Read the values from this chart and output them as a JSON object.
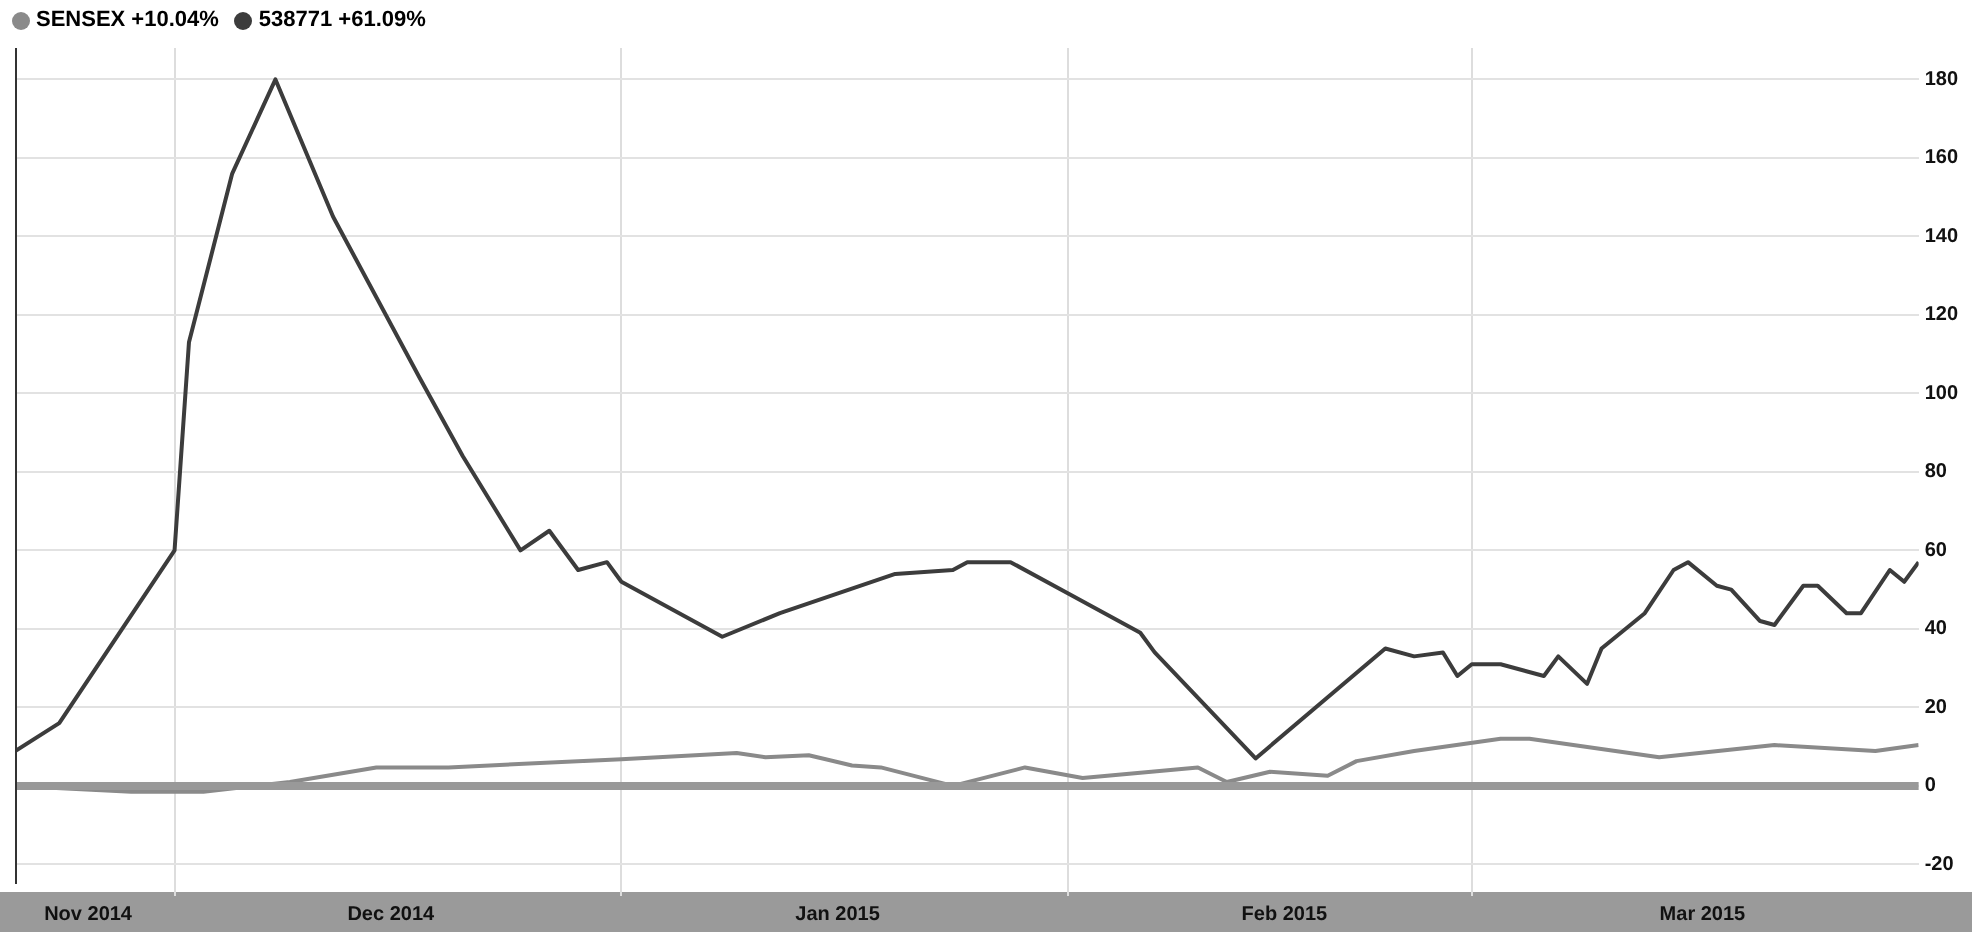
{
  "chart_data": {
    "type": "line",
    "legend": "top left",
    "grid": true,
    "marker": "none",
    "line_style": "solid",
    "xlim": [
      "2014-11-20",
      "2015-04-01"
    ],
    "xticks": [
      {
        "value": "2014-11-25",
        "label": "Nov 2014"
      },
      {
        "value": "2014-12-01",
        "label": null
      },
      {
        "value": "2014-12-16",
        "label": "Dec 2014"
      },
      {
        "value": "2015-01-01",
        "label": null
      },
      {
        "value": "2015-01-16",
        "label": "Jan 2015"
      },
      {
        "value": "2015-02-01",
        "label": null
      },
      {
        "value": "2015-02-16",
        "label": "Feb 2015"
      },
      {
        "value": "2015-03-01",
        "label": null
      },
      {
        "value": "2015-03-17",
        "label": "Mar 2015"
      }
    ],
    "ylim": [
      -25,
      188
    ],
    "yticks": [
      -20,
      0,
      20,
      40,
      60,
      80,
      100,
      120,
      140,
      160,
      180
    ],
    "ref_lines": [
      {
        "axis": "y",
        "value": 0,
        "color": "#999999"
      }
    ],
    "series": [
      {
        "name": "SENSEX +10.04%",
        "color": "#8a8a8a",
        "x": [
          "2014-11-20",
          "2014-11-28",
          "2014-12-03",
          "2014-12-09",
          "2014-12-15",
          "2014-12-20",
          "2015-01-01",
          "2015-01-09",
          "2015-01-11",
          "2015-01-14",
          "2015-01-17",
          "2015-01-19",
          "2015-01-24",
          "2015-01-29",
          "2015-02-02",
          "2015-02-10",
          "2015-02-12",
          "2015-02-15",
          "2015-02-19",
          "2015-02-21",
          "2015-02-25",
          "2015-03-03",
          "2015-03-05",
          "2015-03-14",
          "2015-03-22",
          "2015-03-29",
          "2015-04-01"
        ],
        "values": [
          0,
          -1.5,
          -1.5,
          1,
          4.7,
          4.7,
          6.8,
          8.4,
          7.3,
          7.8,
          5.2,
          4.7,
          0,
          4.7,
          2,
          4.7,
          1,
          3.6,
          2.6,
          6.3,
          8.9,
          12,
          12,
          7.3,
          10.4,
          8.9,
          10.4
        ]
      },
      {
        "name": "538771 +61.09%",
        "color": "#3c3c3c",
        "x": [
          "2014-11-20",
          "2014-11-23",
          "2014-12-01",
          "2014-12-02",
          "2014-12-05",
          "2014-12-08",
          "2014-12-12",
          "2014-12-18",
          "2014-12-21",
          "2014-12-25",
          "2014-12-27",
          "2014-12-29",
          "2014-12-31",
          "2015-01-01",
          "2015-01-08",
          "2015-01-12",
          "2015-01-20",
          "2015-01-24",
          "2015-01-25",
          "2015-01-28",
          "2015-02-01",
          "2015-02-06",
          "2015-02-07",
          "2015-02-14",
          "2015-02-23",
          "2015-02-25",
          "2015-02-27",
          "2015-02-28",
          "2015-03-01",
          "2015-03-03",
          "2015-03-06",
          "2015-03-07",
          "2015-03-09",
          "2015-03-10",
          "2015-03-13",
          "2015-03-15",
          "2015-03-16",
          "2015-03-18",
          "2015-03-19",
          "2015-03-21",
          "2015-03-22",
          "2015-03-24",
          "2015-03-25",
          "2015-03-27",
          "2015-03-28",
          "2015-03-30",
          "2015-03-31",
          "2015-04-01"
        ],
        "values": [
          9,
          16,
          60,
          113,
          156,
          180,
          145,
          104,
          84,
          60,
          65,
          55,
          57,
          52,
          38,
          44,
          54,
          55,
          57,
          57,
          49,
          39,
          34,
          7,
          35,
          33,
          34,
          28,
          31,
          31,
          28,
          33,
          26,
          35,
          44,
          55,
          57,
          51,
          50,
          42,
          41,
          51,
          51,
          44,
          44,
          55,
          52,
          57
        ]
      }
    ]
  }
}
